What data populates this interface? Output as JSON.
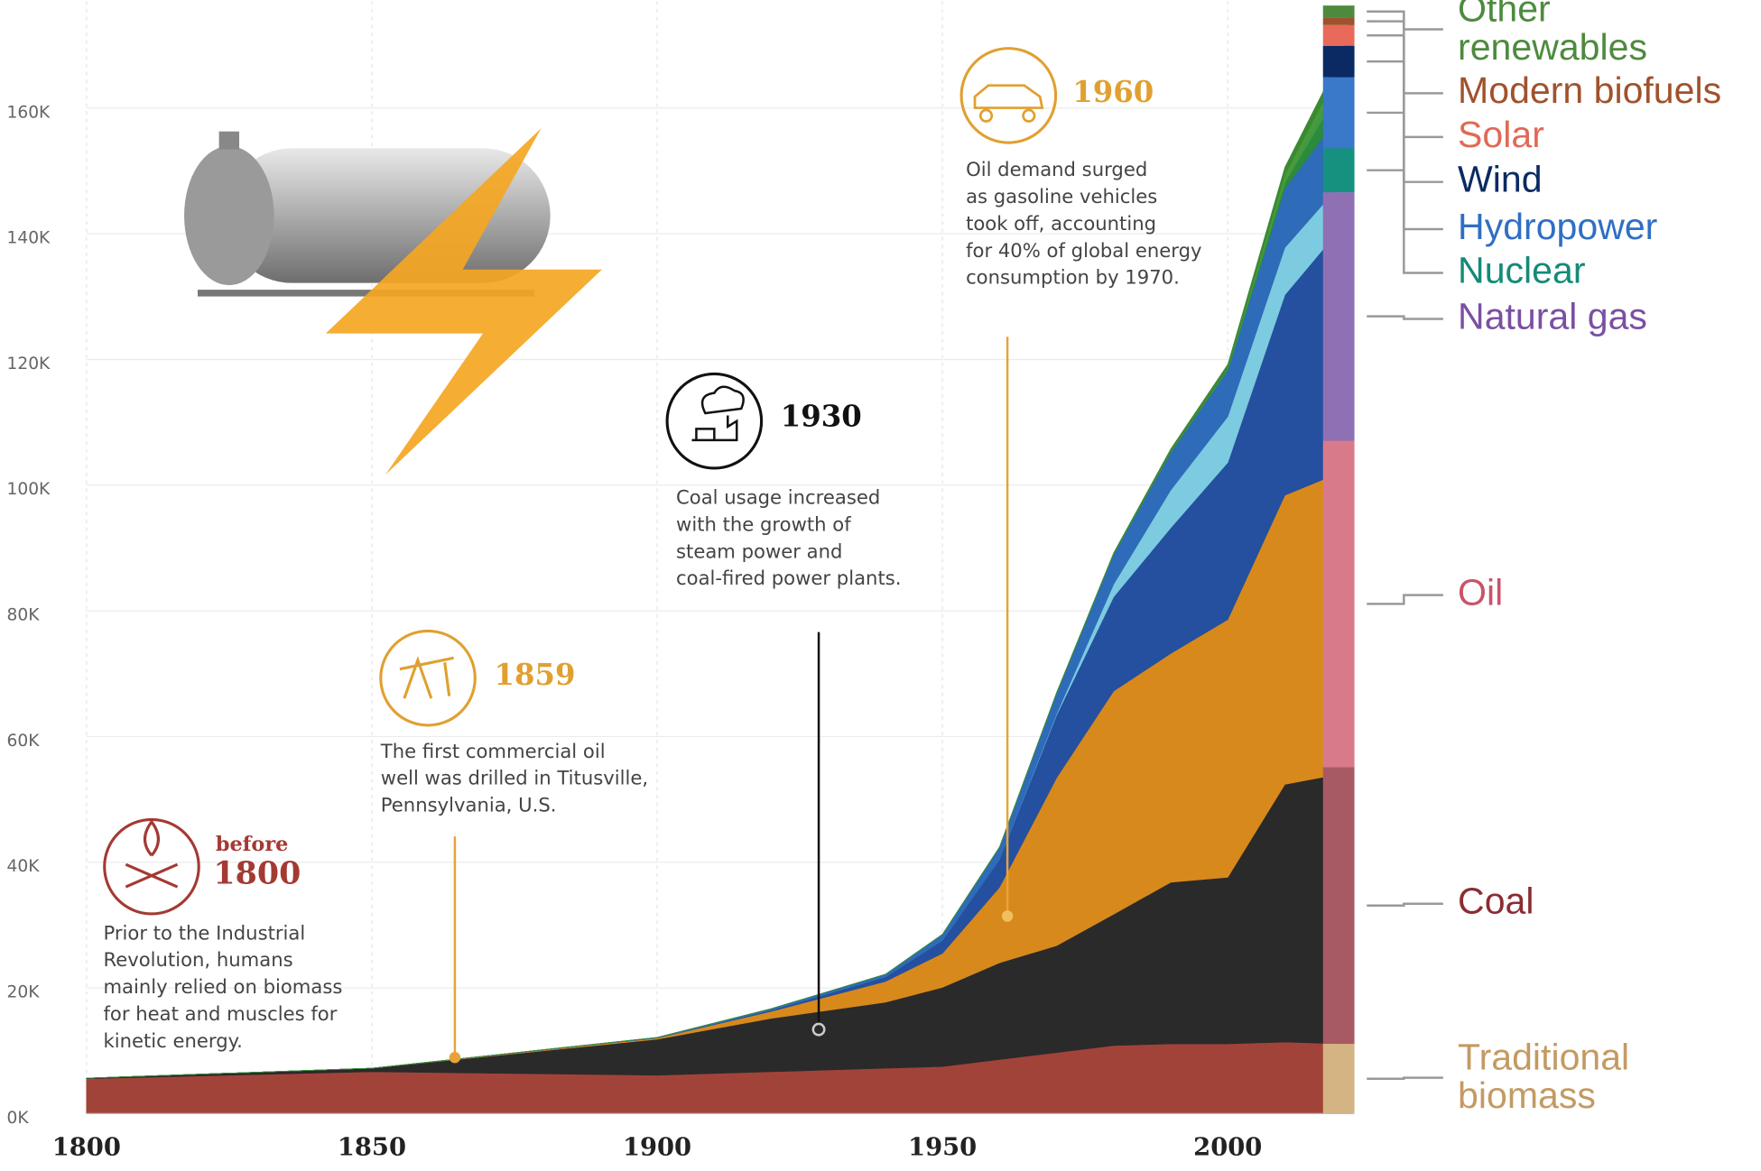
{
  "chart_data": {
    "type": "stacked-area",
    "x": [
      1800,
      1850,
      1900,
      1920,
      1940,
      1950,
      1960,
      1970,
      1980,
      1990,
      2000,
      2010,
      2020,
      2022
    ],
    "xlim": [
      1800,
      2022
    ],
    "xticks": [
      1800,
      1850,
      1900,
      1950,
      2000
    ],
    "ylim": [
      0,
      177000
    ],
    "yticks": [
      {
        "value": 0,
        "label": "0K"
      },
      {
        "value": 20000,
        "label": "20K"
      },
      {
        "value": 40000,
        "label": "40K"
      },
      {
        "value": 60000,
        "label": "60K"
      },
      {
        "value": 80000,
        "label": "80K"
      },
      {
        "value": 100000,
        "label": "100K"
      },
      {
        "value": 120000,
        "label": "120K"
      },
      {
        "value": 140000,
        "label": "140K"
      },
      {
        "value": 160000,
        "label": "160K"
      }
    ],
    "grid": true,
    "series": [
      {
        "name": "Traditional biomass",
        "color": "#c49a62",
        "strip_color": "#d4b483",
        "area_color": "#a2433a",
        "values": [
          5556,
          6667,
          6111,
          6667,
          7222,
          7500,
          8611,
          9722,
          10833,
          11111,
          11111,
          11389,
          11111,
          11111
        ]
      },
      {
        "name": "Coal",
        "color": "#8b2c33",
        "strip_color": "#a85a64",
        "area_color": "#2a2a2a",
        "values": [
          97,
          570,
          5728,
          8500,
          10500,
          12600,
          15400,
          17000,
          20900,
          25700,
          26500,
          41000,
          43000,
          44000
        ]
      },
      {
        "name": "Oil",
        "color": "#c9536a",
        "strip_color": "#d97a8a",
        "area_color": "#d8891c",
        "values": [
          0,
          0,
          181,
          1100,
          3300,
          5400,
          12000,
          26700,
          35500,
          36400,
          41000,
          46000,
          48000,
          52000
        ]
      },
      {
        "name": "Natural gas",
        "color": "#7b4fa3",
        "strip_color": "#9070b5",
        "area_color": "#24509f",
        "values": [
          0,
          0,
          64,
          240,
          750,
          2100,
          4500,
          10000,
          15000,
          20000,
          25000,
          31900,
          39000,
          39500
        ]
      },
      {
        "name": "Nuclear",
        "color": "#148a78",
        "strip_color": "#17917f",
        "area_color": "#7ccbe0",
        "values": [
          0,
          0,
          0,
          0,
          0,
          0,
          0,
          200,
          2000,
          6000,
          7300,
          7500,
          7000,
          7000
        ]
      },
      {
        "name": "Hydropower",
        "color": "#2f6fc4",
        "strip_color": "#3a78c9",
        "area_color": "#2e6bb8",
        "values": [
          0,
          0,
          50,
          200,
          400,
          930,
          1900,
          3300,
          4800,
          6000,
          7400,
          9400,
          11300,
          11300
        ]
      },
      {
        "name": "Wind",
        "color": "#0b2a63",
        "strip_color": "#0b2a63",
        "area_color": "#2c8a3c",
        "values": [
          0,
          0,
          0,
          0,
          0,
          0,
          0,
          0,
          0,
          0,
          80,
          900,
          4000,
          5000
        ]
      },
      {
        "name": "Solar",
        "color": "#e06a55",
        "strip_color": "#e86a5a",
        "area_color": "#3e9a45",
        "values": [
          0,
          0,
          0,
          0,
          0,
          0,
          0,
          0,
          0,
          0,
          0,
          80,
          2200,
          3300
        ]
      },
      {
        "name": "Modern biofuels",
        "color": "#a0522d",
        "strip_color": "#a0522d",
        "area_color": "#4a9a3a",
        "values": [
          0,
          0,
          0,
          0,
          0,
          0,
          0,
          0,
          0,
          50,
          120,
          1200,
          1100,
          1200
        ]
      },
      {
        "name": "Other renewables",
        "color": "#4e8a3e",
        "strip_color": "#4e8a3e",
        "area_color": "#3a8a34",
        "values": [
          0,
          0,
          0,
          0,
          0,
          0,
          0,
          100,
          200,
          500,
          700,
          1200,
          1800,
          1900
        ]
      }
    ],
    "annotations": [
      {
        "kicker": "before",
        "year": "1800",
        "lines": [
          "Prior to the Industrial",
          "Revolution, humans",
          "mainly relied on biomass",
          "for heat and muscles for",
          "kinetic energy."
        ]
      },
      {
        "year": "1859",
        "lines": [
          "The first commercial oil",
          "well was drilled in Titusville,",
          "Pennsylvania, U.S."
        ]
      },
      {
        "year": "1930",
        "lines": [
          "Coal usage increased",
          "with the growth of",
          "steam power and",
          "coal-fired power plants."
        ]
      },
      {
        "year": "1960",
        "lines": [
          "Oil demand surged",
          "as gasoline vehicles",
          "took off, accounting",
          "for 40% of global energy",
          "consumption by 1970."
        ]
      }
    ]
  }
}
